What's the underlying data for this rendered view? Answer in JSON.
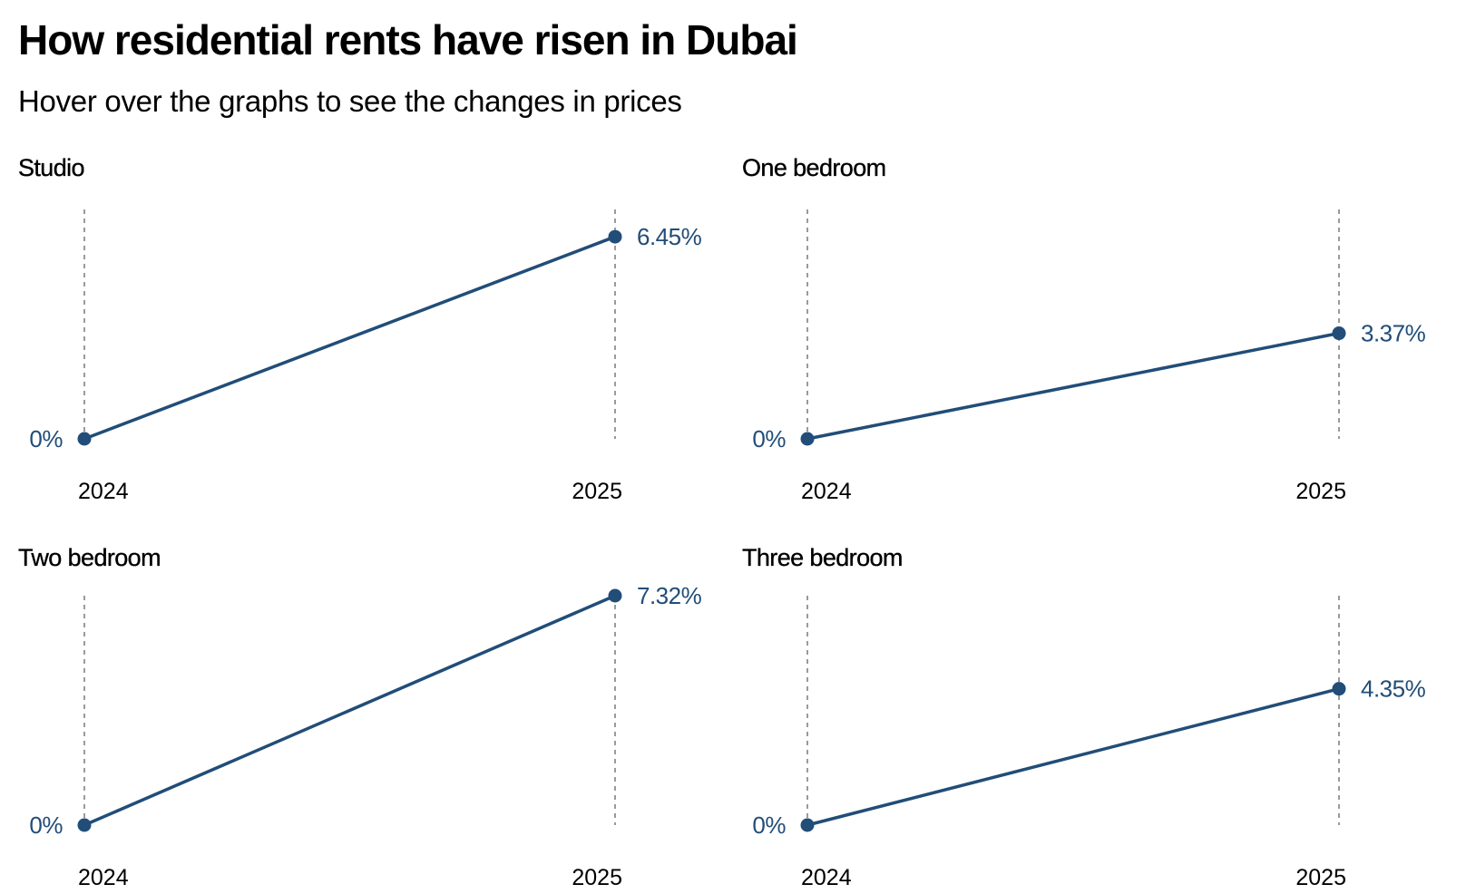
{
  "header": {
    "title": "How residential rents have risen in Dubai",
    "subtitle": "Hover over the graphs to see the changes in prices"
  },
  "colors": {
    "series": "#214d78",
    "guide": "#9a9a9a",
    "text": "#000000"
  },
  "chart_data": [
    {
      "type": "line",
      "title": "Studio",
      "x": [
        "2024",
        "2025"
      ],
      "values": [
        0,
        6.45
      ],
      "value_labels": [
        "0%",
        "6.45%"
      ],
      "xlabel": "",
      "ylabel": "",
      "ylim": [
        0,
        7.32
      ],
      "grid": false
    },
    {
      "type": "line",
      "title": "One bedroom",
      "x": [
        "2024",
        "2025"
      ],
      "values": [
        0,
        3.37
      ],
      "value_labels": [
        "0%",
        "3.37%"
      ],
      "xlabel": "",
      "ylabel": "",
      "ylim": [
        0,
        7.32
      ],
      "grid": false
    },
    {
      "type": "line",
      "title": "Two bedroom",
      "x": [
        "2024",
        "2025"
      ],
      "values": [
        0,
        7.32
      ],
      "value_labels": [
        "0%",
        "7.32%"
      ],
      "xlabel": "",
      "ylabel": "",
      "ylim": [
        0,
        7.32
      ],
      "grid": false
    },
    {
      "type": "line",
      "title": "Three bedroom",
      "x": [
        "2024",
        "2025"
      ],
      "values": [
        0,
        4.35
      ],
      "value_labels": [
        "0%",
        "4.35%"
      ],
      "xlabel": "",
      "ylabel": "",
      "ylim": [
        0,
        7.32
      ],
      "grid": false
    }
  ]
}
